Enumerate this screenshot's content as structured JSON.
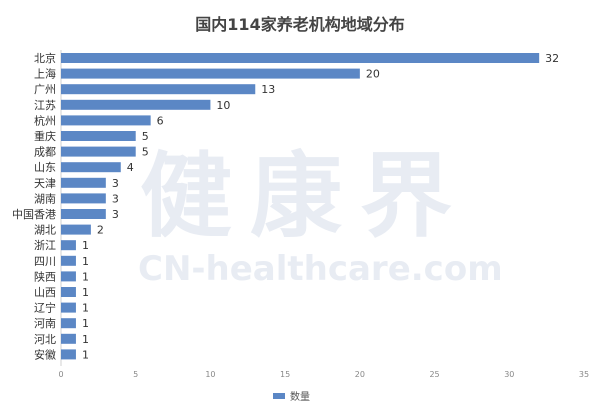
{
  "watermark": {
    "logo_text": "健康界",
    "logo_url": "CN-healthcare.com"
  },
  "chart_data": {
    "type": "bar",
    "orientation": "horizontal",
    "title": "国内114家养老机构地域分布",
    "categories": [
      "北京",
      "上海",
      "广州",
      "江苏",
      "杭州",
      "重庆",
      "成都",
      "山东",
      "天津",
      "湖南",
      "中国香港",
      "湖北",
      "浙江",
      "四川",
      "陕西",
      "山西",
      "辽宁",
      "河南",
      "河北",
      "安徽"
    ],
    "series": [
      {
        "name": "数量",
        "color": "#5b87c5",
        "values": [
          32,
          20,
          13,
          10,
          6,
          5,
          5,
          4,
          3,
          3,
          3,
          2,
          1,
          1,
          1,
          1,
          1,
          1,
          1,
          1
        ]
      }
    ],
    "xlim": [
      0,
      35
    ],
    "xticks": [
      0,
      5,
      10,
      15,
      20,
      25,
      30,
      35
    ],
    "grid": false,
    "legend": "bottom"
  }
}
